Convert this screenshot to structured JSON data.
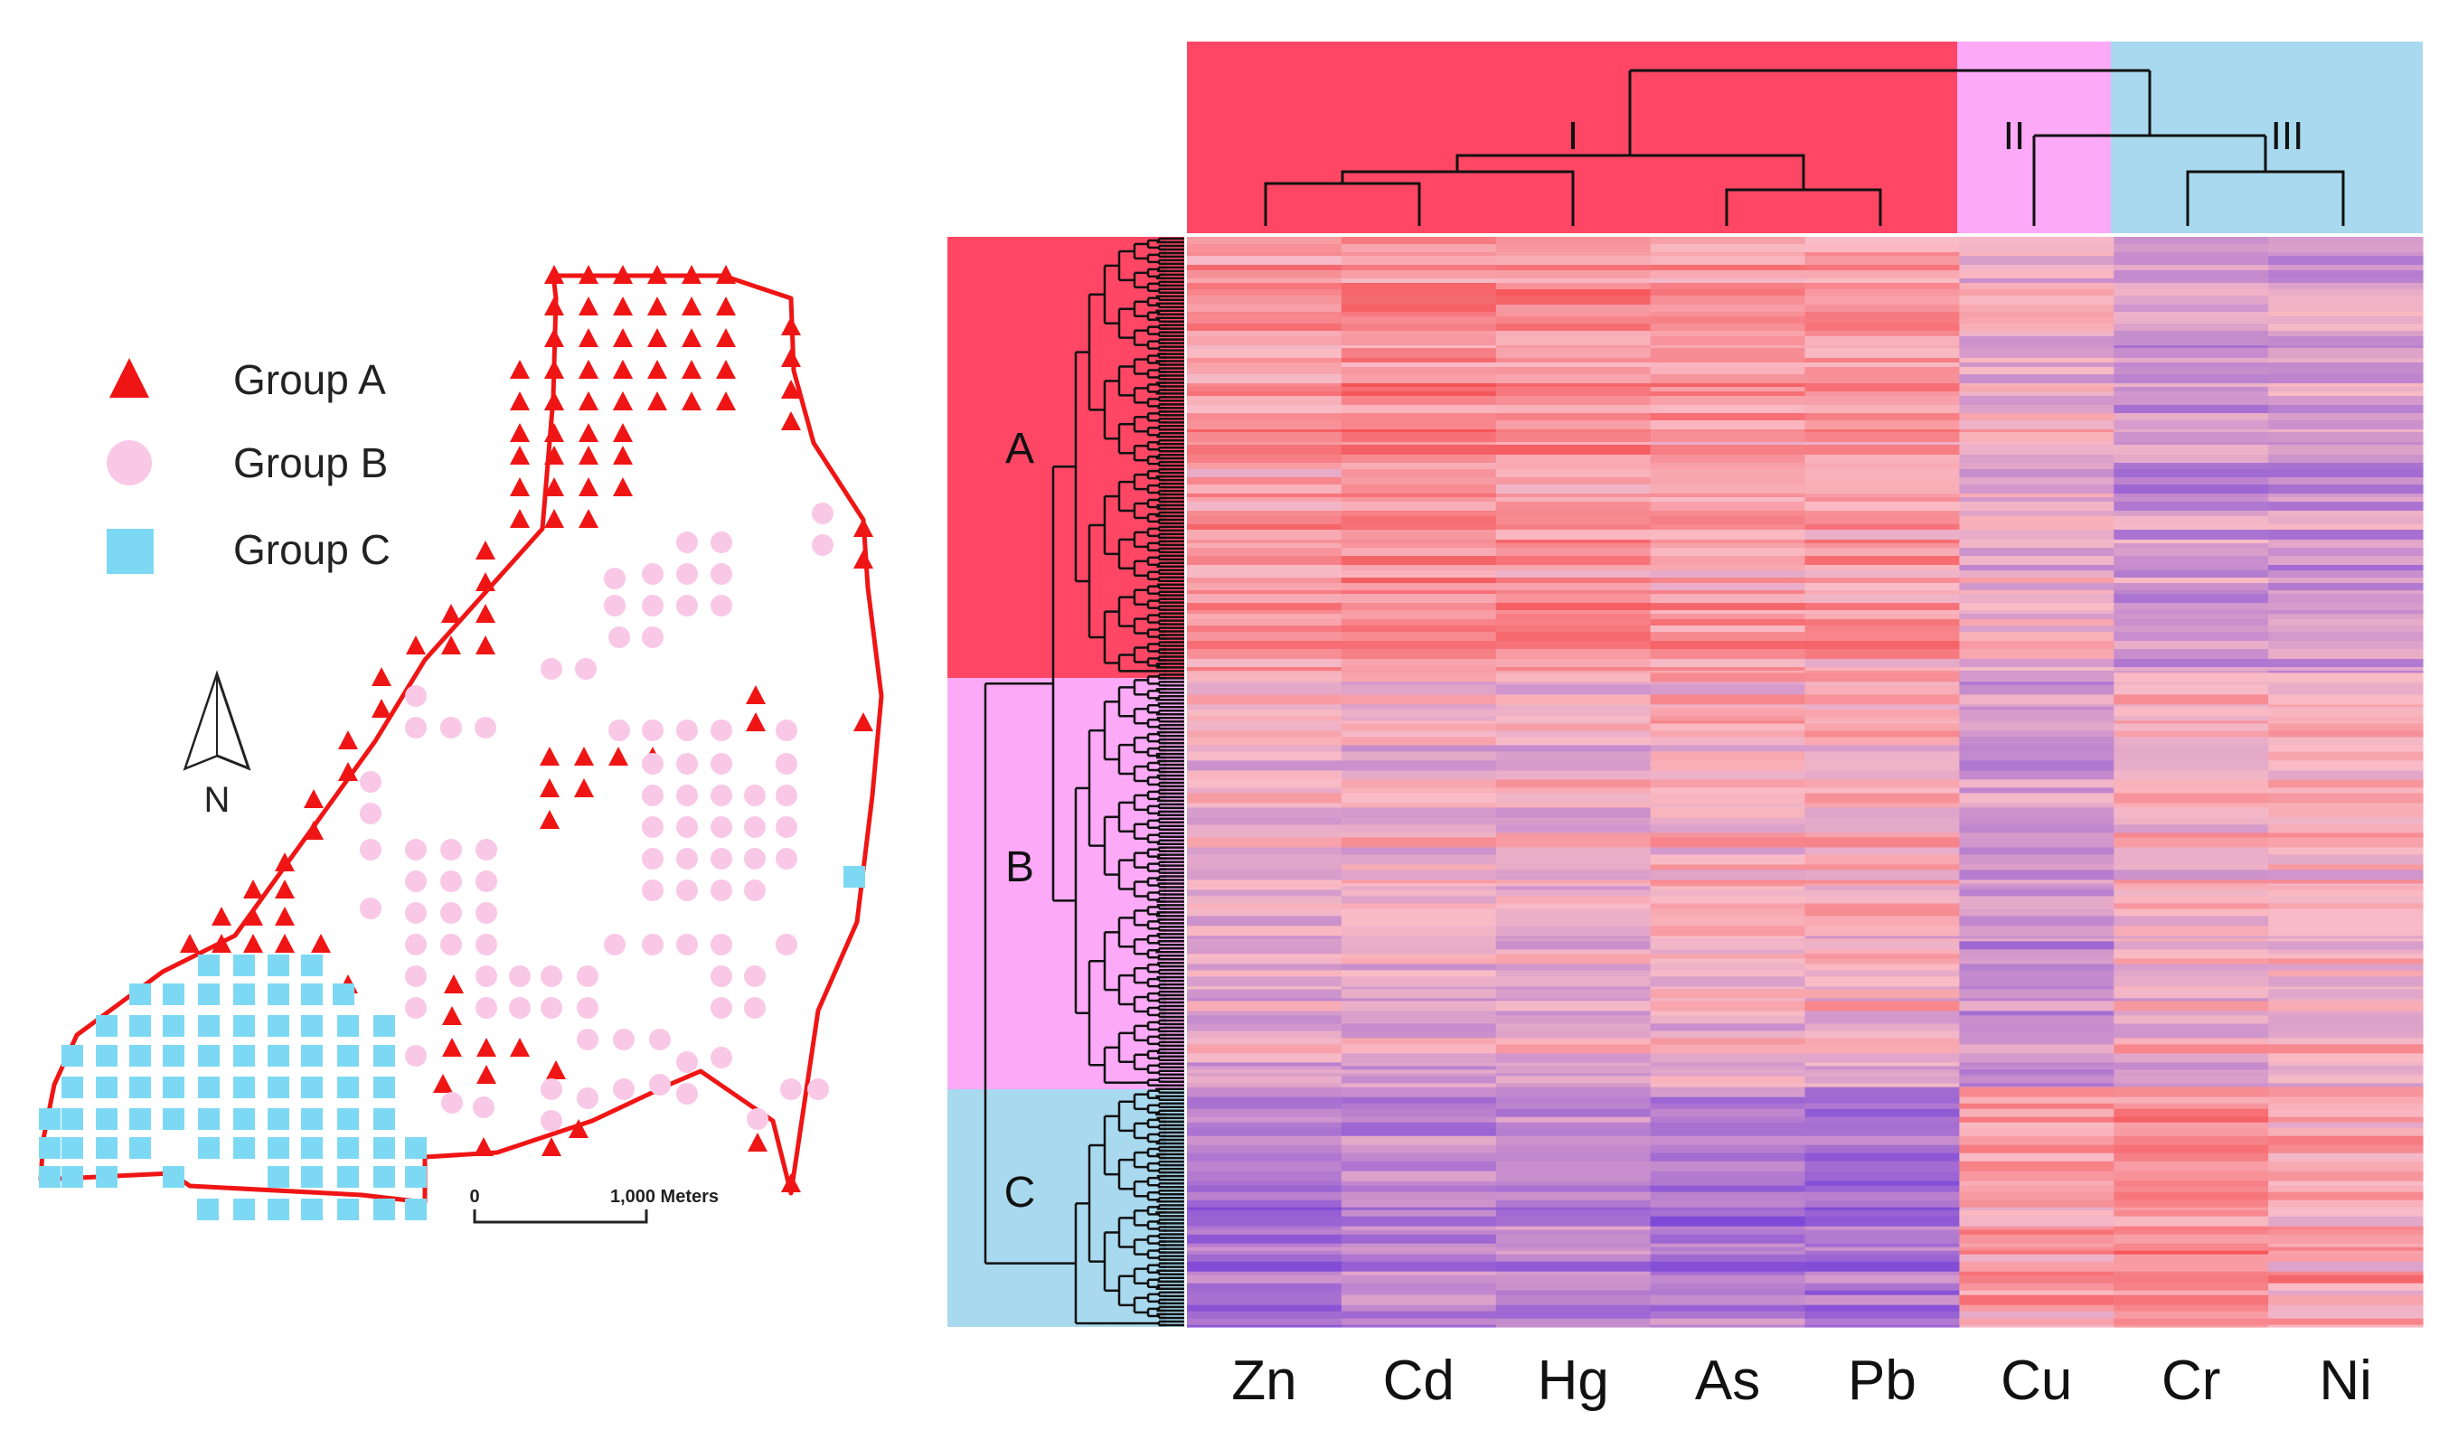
{
  "legend": {
    "group_a": "Group A",
    "group_b": "Group B",
    "group_c": "Group C"
  },
  "north_label": "N",
  "scale_bar": {
    "start": "0",
    "end": "1,000 Meters"
  },
  "colors": {
    "group_a": "#f01515",
    "group_b": "#f9c8e6",
    "group_c": "#7dd9f3",
    "cluster_a_band": "#ff4765",
    "cluster_b_band": "#fca9f8",
    "cluster_c_band": "#a8d9ee",
    "heat_high": "#f21b1b",
    "heat_mid": "#f9bcc6",
    "heat_low": "#6f3bd9"
  },
  "chart_data": [
    {
      "type": "scatter",
      "title": "",
      "description_label": "sampling map",
      "series": [
        {
          "name": "Group A",
          "marker": "triangle"
        },
        {
          "name": "Group B",
          "marker": "circle"
        },
        {
          "name": "Group C",
          "marker": "square"
        }
      ]
    },
    {
      "type": "heatmap",
      "columns": [
        "Zn",
        "Cd",
        "Hg",
        "As",
        "Pb",
        "Cu",
        "Cr",
        "Ni"
      ],
      "column_clusters": [
        {
          "label": "I",
          "members": [
            "Zn",
            "Cd",
            "Hg",
            "As",
            "Pb"
          ]
        },
        {
          "label": "II",
          "members": [
            "Cu"
          ]
        },
        {
          "label": "III",
          "members": [
            "Cr",
            "Ni"
          ]
        }
      ],
      "row_clusters": [
        {
          "label": "A",
          "share": 0.4
        },
        {
          "label": "B",
          "share": 0.38
        },
        {
          "label": "C",
          "share": 0.22
        }
      ],
      "cluster_mean_level": {
        "A": [
          0.62,
          0.66,
          0.64,
          0.6,
          0.6,
          0.46,
          0.34,
          0.36
        ],
        "B": [
          0.46,
          0.47,
          0.46,
          0.52,
          0.52,
          0.34,
          0.5,
          0.52
        ],
        "C": [
          0.22,
          0.3,
          0.28,
          0.24,
          0.2,
          0.6,
          0.66,
          0.58
        ]
      },
      "scale": "low (purple) to high (red)"
    }
  ]
}
